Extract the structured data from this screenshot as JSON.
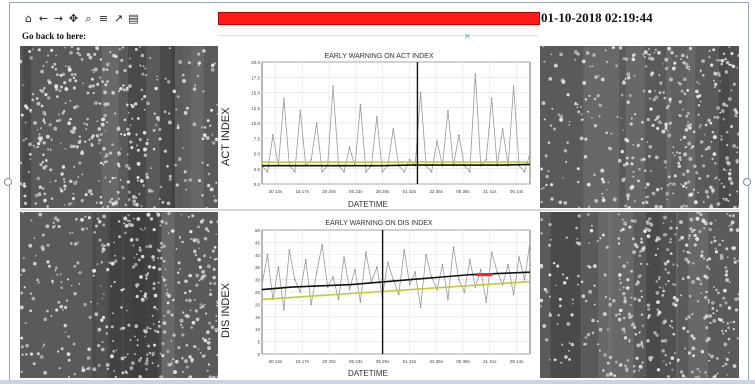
{
  "toolbar": {
    "icons": [
      "home-icon",
      "back-arrow-icon",
      "forward-arrow-icon",
      "pan-icon",
      "zoom-icon",
      "configure-subplots-icon",
      "edit-axes-icon",
      "save-icon"
    ],
    "glyphs": [
      "⌂",
      "←",
      "→",
      "✥",
      "⌕",
      "≡",
      "↗",
      "▤"
    ]
  },
  "status": {
    "text": "",
    "color": "#ff1a1a"
  },
  "datetime": "01-10-2018 02:19:44",
  "go_back_label": "Go back to here:",
  "chart_data": [
    {
      "type": "line",
      "title": "EARLY WARNING ON ACT INDEX",
      "ylabel": "ACT INDEX",
      "xlabel": "DATETIME",
      "ylim": [
        0,
        20
      ],
      "yticks": [
        "0.0",
        "2.5",
        "5.0",
        "7.5",
        "10.0",
        "12.5",
        "15.0",
        "17.5",
        "20.0"
      ],
      "xticks": [
        "30 14s",
        "15 17s",
        "20 20s",
        "05 23s",
        "35 26s",
        "01 32s",
        "22 35s",
        "05 38s",
        "21 41s",
        "05 14s"
      ],
      "grid": true,
      "series": [
        {
          "color": "#999999",
          "values": [
            3,
            2,
            8,
            3,
            14,
            3,
            2,
            12,
            3,
            4,
            10,
            2,
            3,
            16,
            3,
            2,
            6,
            3,
            13,
            2,
            3,
            11,
            2,
            3,
            9,
            3,
            2,
            4,
            3,
            15,
            3,
            2,
            7,
            3,
            12,
            3,
            8,
            3,
            2,
            18,
            3,
            4,
            14,
            3,
            9,
            3,
            16,
            3,
            2,
            5
          ]
        },
        {
          "color": "#111111",
          "values": [
            3,
            3,
            3,
            3,
            3,
            3.1,
            3.1,
            3.1,
            3.1,
            3.2
          ]
        },
        {
          "color": "#c8c832",
          "values": [
            3.6,
            3.6,
            3.6,
            3.6,
            3.6,
            3.6,
            3.6,
            3.6,
            3.6,
            3.6
          ]
        }
      ],
      "vline_position": 0.58
    },
    {
      "type": "line",
      "title": "EARLY WARNING ON DIS INDEX",
      "ylabel": "DIS INDEX",
      "xlabel": "DATETIME",
      "ylim": [
        0,
        50
      ],
      "yticks": [
        "0",
        "5",
        "10",
        "15",
        "20",
        "25",
        "30",
        "35",
        "40",
        "45",
        "50"
      ],
      "xticks": [
        "30 14s",
        "15 17s",
        "20 20s",
        "05 23s",
        "35 26s",
        "01 32s",
        "22 35s",
        "05 38s",
        "21 41s",
        "05 14s"
      ],
      "grid": true,
      "series": [
        {
          "color": "#999999",
          "values": [
            28,
            40,
            22,
            35,
            18,
            42,
            30,
            25,
            38,
            20,
            33,
            44,
            27,
            31,
            22,
            39,
            26,
            34,
            21,
            41,
            29,
            35,
            23,
            37,
            30,
            24,
            42,
            28,
            33,
            19,
            40,
            31,
            26,
            36,
            22,
            43,
            30,
            25,
            38,
            27,
            34,
            21,
            41,
            33,
            28,
            36,
            24,
            39,
            30,
            45
          ]
        },
        {
          "color": "#111111",
          "values": [
            26,
            27,
            27.5,
            28,
            29,
            30,
            31,
            32,
            32.5,
            33
          ]
        },
        {
          "color": "#c8c832",
          "values": [
            22,
            22.8,
            23.6,
            24.4,
            25.2,
            26,
            26.8,
            27.6,
            28.4,
            29.2
          ]
        },
        {
          "color": "#ff2020",
          "values": [
            32,
            32
          ]
        }
      ],
      "vline_position": 0.45
    }
  ]
}
